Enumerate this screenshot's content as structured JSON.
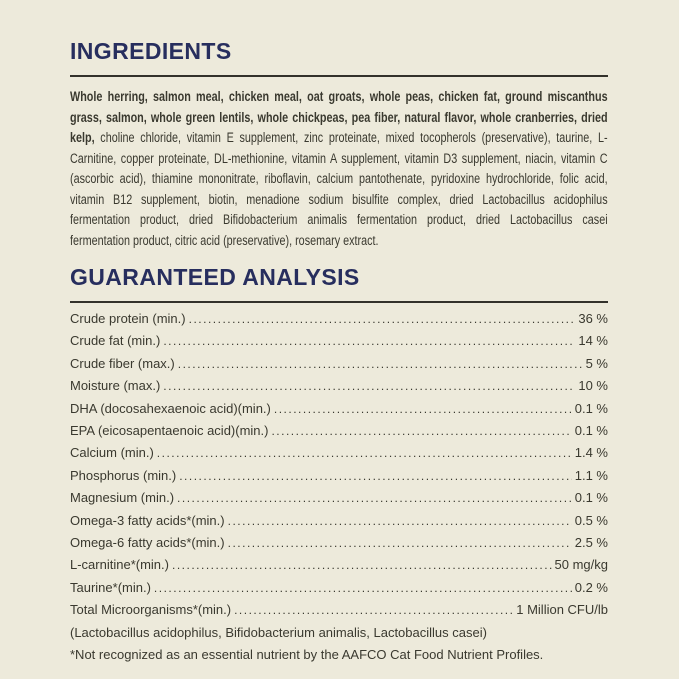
{
  "theme": {
    "background_color": "#EDEADB",
    "heading_color": "#272E5E",
    "text_color": "#3A392F",
    "rule_color": "#33322B"
  },
  "ingredients": {
    "heading": "INGREDIENTS",
    "bold_text": "Whole herring, salmon meal, chicken meal, oat groats, whole peas, chicken fat, ground miscanthus grass, salmon, whole green lentils, whole chickpeas, pea fiber, natural flavor, whole cranberries, dried kelp,",
    "regular_text": "choline chloride, vitamin E supplement, zinc proteinate, mixed tocopherols (preservative), taurine, L-Carnitine, copper proteinate, DL-methionine, vitamin A supplement, vitamin D3 supplement, niacin, vitamin C (ascorbic acid), thiamine mononitrate, riboflavin, calcium pantothenate, pyridoxine hydrochloride, folic acid, vitamin B12 supplement, biotin, menadione sodium bisulfite complex, dried Lactobacillus acidophilus fermentation product, dried Bifidobacterium animalis fermentation product, dried Lactobacillus casei fermentation product, citric acid (preservative), rosemary extract."
  },
  "guaranteed_analysis": {
    "heading": "GUARANTEED ANALYSIS",
    "rows": [
      {
        "label": "Crude protein (min.)",
        "value": "36 %"
      },
      {
        "label": "Crude fat (min.)",
        "value": "14 %"
      },
      {
        "label": "Crude fiber (max.)",
        "value": "5 %"
      },
      {
        "label": "Moisture (max.)",
        "value": "10 %"
      },
      {
        "label": "DHA (docosahexaenoic acid)(min.)",
        "value": "0.1 %"
      },
      {
        "label": "EPA (eicosapentaenoic acid)(min.)",
        "value": "0.1 %"
      },
      {
        "label": "Calcium (min.)",
        "value": "1.4 %"
      },
      {
        "label": "Phosphorus (min.)",
        "value": "1.1 %"
      },
      {
        "label": "Magnesium (min.)",
        "value": "0.1 %"
      },
      {
        "label": "Omega-3 fatty acids*(min.)",
        "value": "0.5 %"
      },
      {
        "label": "Omega-6 fatty acids*(min.)",
        "value": "2.5 %"
      },
      {
        "label": "L-carnitine*(min.)",
        "value": "50 mg/kg"
      },
      {
        "label": "Taurine*(min.)",
        "value": "0.2 %"
      },
      {
        "label": "Total Microorganisms*(min.)",
        "value": "1 Million CFU/lb"
      }
    ],
    "microorganisms_note": "(Lactobacillus acidophilus, Bifidobacterium animalis, Lactobacillus casei)",
    "footnote": "*Not recognized as an essential nutrient by the AAFCO Cat Food Nutrient Profiles."
  }
}
